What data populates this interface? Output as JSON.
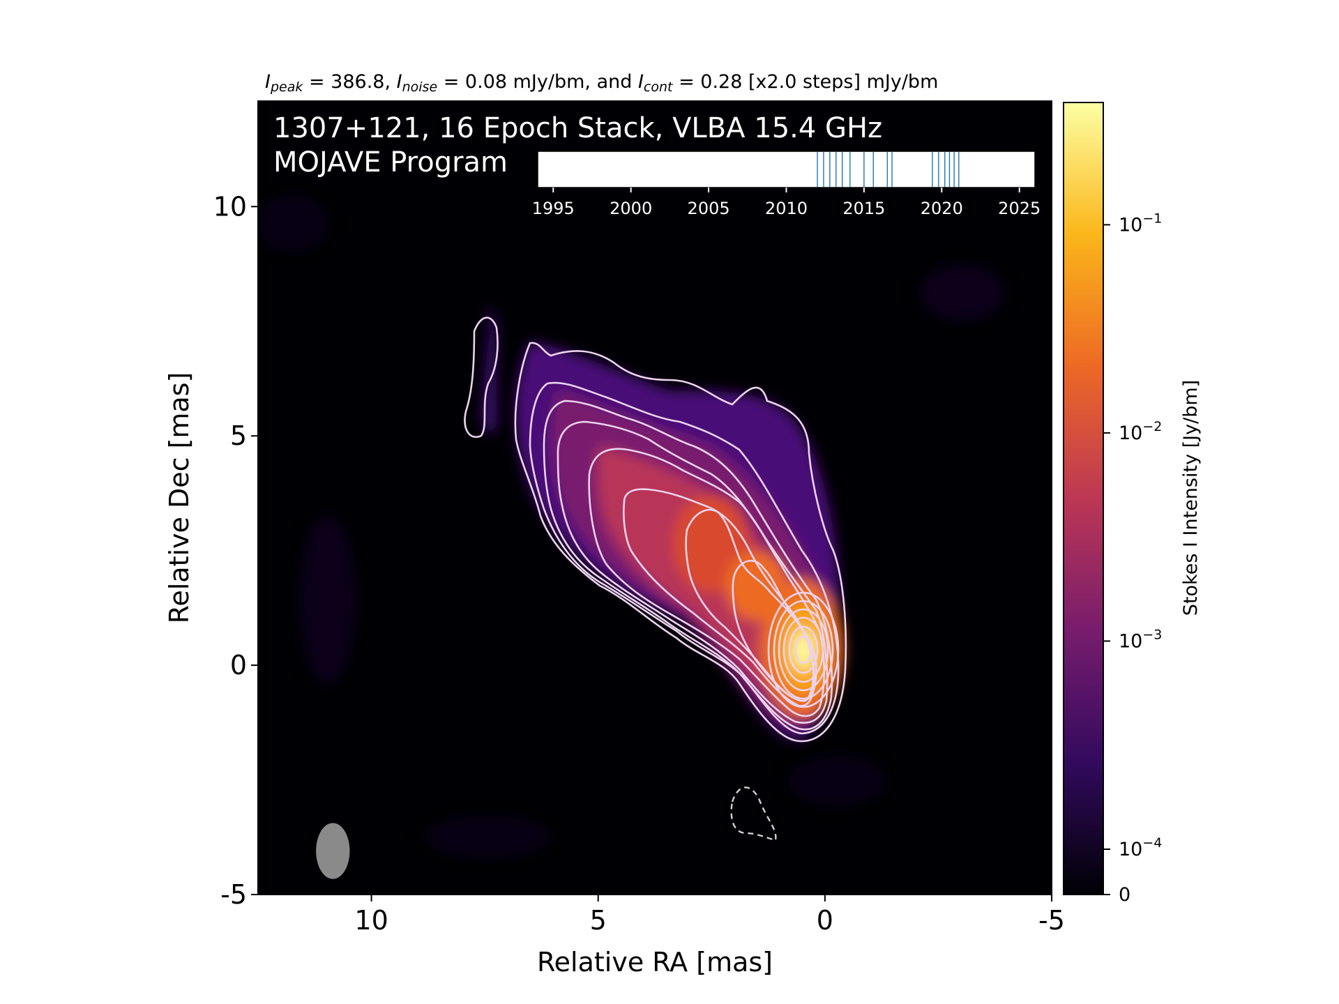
{
  "chart_data": {
    "type": "heatmap",
    "header": {
      "peak_sym": "I",
      "peak_sub": "peak",
      "peak_val": " = 386.8, ",
      "noise_sym": "I",
      "noise_sub": "noise",
      "noise_val": " = 0.08 mJy/bm, and ",
      "cont_sym": "I",
      "cont_sub": "cont",
      "cont_val": " = 0.28 [x2.0 steps] mJy/bm"
    },
    "source_line": "1307+121, 16 Epoch Stack, VLBA 15.4 GHz",
    "program_line": "MOJAVE Program",
    "xlabel": "Relative RA [mas]",
    "ylabel": "Relative Dec [mas]",
    "xlim": [
      12.5,
      -5
    ],
    "ylim": [
      -5,
      12.3
    ],
    "xticks": [
      10,
      5,
      0,
      -5
    ],
    "xtick_labels": [
      "10",
      "5",
      "0",
      "-5"
    ],
    "yticks": [
      -5,
      0,
      5,
      10
    ],
    "ytick_labels": [
      "-5",
      "0",
      "5",
      "10"
    ],
    "peak_position": [
      0,
      0
    ],
    "colorbar": {
      "label": "Stokes I Intensity [Jy/bm]",
      "scale": "log",
      "ticks": [
        0,
        0.0001,
        0.001,
        0.01,
        0.1
      ],
      "tick_labels": [
        {
          "base": "0",
          "exp": ""
        },
        {
          "base": "10",
          "exp": "−4"
        },
        {
          "base": "10",
          "exp": "−3"
        },
        {
          "base": "10",
          "exp": "−2"
        },
        {
          "base": "10",
          "exp": "−1"
        }
      ],
      "colors": [
        "#000004",
        "#320a5e",
        "#781c6d",
        "#bc3754",
        "#ed6925",
        "#fbb61a",
        "#fcffa4"
      ]
    },
    "contour_color": "#f0d8f0",
    "negative_contour_style": "dashed",
    "epoch_timeline": {
      "xlim": [
        1994,
        2026
      ],
      "ticks": [
        1995,
        2000,
        2005,
        2010,
        2015,
        2020,
        2025
      ],
      "tick_labels": [
        "1995",
        "2000",
        "2005",
        "2010",
        "2015",
        "2020",
        "2025"
      ],
      "epochs": [
        2012.0,
        2012.4,
        2012.8,
        2013.2,
        2013.6,
        2014.1,
        2015.0,
        2015.6,
        2016.5,
        2016.8,
        2019.4,
        2019.8,
        2020.2,
        2020.5,
        2020.8,
        2021.1
      ],
      "line_color": "#1f77b4"
    },
    "beam": {
      "major_mas": 1.05,
      "minor_mas": 0.55,
      "center": [
        10.85,
        -4.05
      ],
      "color": "#8a8a8a"
    }
  }
}
